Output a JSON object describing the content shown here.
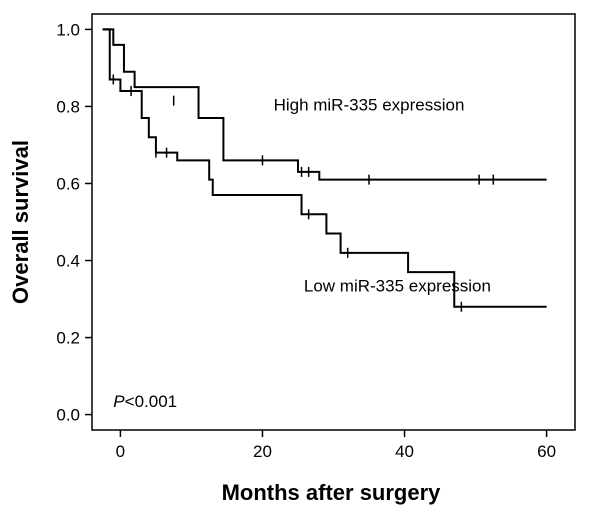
{
  "chart_data": {
    "type": "line",
    "xlabel": "Months after surgery",
    "ylabel": "Overall survival",
    "xlim": [
      -4,
      64
    ],
    "ylim": [
      -0.04,
      1.04
    ],
    "xticks": [
      0,
      20,
      40,
      60
    ],
    "yticks": [
      0.0,
      0.2,
      0.4,
      0.6,
      0.8,
      1.0
    ],
    "xtick_labels": [
      "0",
      "20",
      "40",
      "60"
    ],
    "ytick_labels": [
      "0.0",
      "0.2",
      "0.4",
      "0.6",
      "0.8",
      "1.0"
    ],
    "grid": false,
    "series": [
      {
        "name": "High miR-335 expression",
        "color": "#000000",
        "steps": [
          [
            -2.5,
            1.0
          ],
          [
            -1,
            0.96
          ],
          [
            0.5,
            0.89
          ],
          [
            2,
            0.85
          ],
          [
            11,
            0.77
          ],
          [
            14.5,
            0.66
          ],
          [
            25,
            0.63
          ],
          [
            28,
            0.61
          ],
          [
            60,
            0.61
          ]
        ],
        "censors": [
          [
            -1.5,
            0.96
          ],
          [
            7.5,
            0.815
          ],
          [
            20,
            0.66
          ],
          [
            25.5,
            0.63
          ],
          [
            26.5,
            0.63
          ],
          [
            35,
            0.61
          ],
          [
            50.5,
            0.61
          ],
          [
            52.5,
            0.61
          ]
        ]
      },
      {
        "name": "Low miR-335 expression",
        "color": "#000000",
        "steps": [
          [
            -2.5,
            1.0
          ],
          [
            -1.5,
            0.87
          ],
          [
            0,
            0.84
          ],
          [
            3,
            0.77
          ],
          [
            4,
            0.72
          ],
          [
            5,
            0.68
          ],
          [
            8,
            0.66
          ],
          [
            12.5,
            0.61
          ],
          [
            13,
            0.57
          ],
          [
            25.5,
            0.52
          ],
          [
            29,
            0.47
          ],
          [
            31,
            0.42
          ],
          [
            40.5,
            0.37
          ],
          [
            47,
            0.28
          ],
          [
            60,
            0.28
          ]
        ],
        "censors": [
          [
            -1,
            0.87
          ],
          [
            1.5,
            0.84
          ],
          [
            5,
            0.68
          ],
          [
            6.5,
            0.68
          ],
          [
            26.5,
            0.52
          ],
          [
            32,
            0.42
          ],
          [
            48,
            0.28
          ]
        ]
      }
    ],
    "annotations": [
      {
        "text": "High miR-335 expression",
        "x": 35,
        "y": 0.79
      },
      {
        "text": "Low miR-335 expression",
        "x": 39,
        "y": 0.32
      }
    ],
    "p_value": {
      "prefix": "P",
      "rest": "<0.001",
      "x": -1,
      "y": 0.02
    }
  }
}
